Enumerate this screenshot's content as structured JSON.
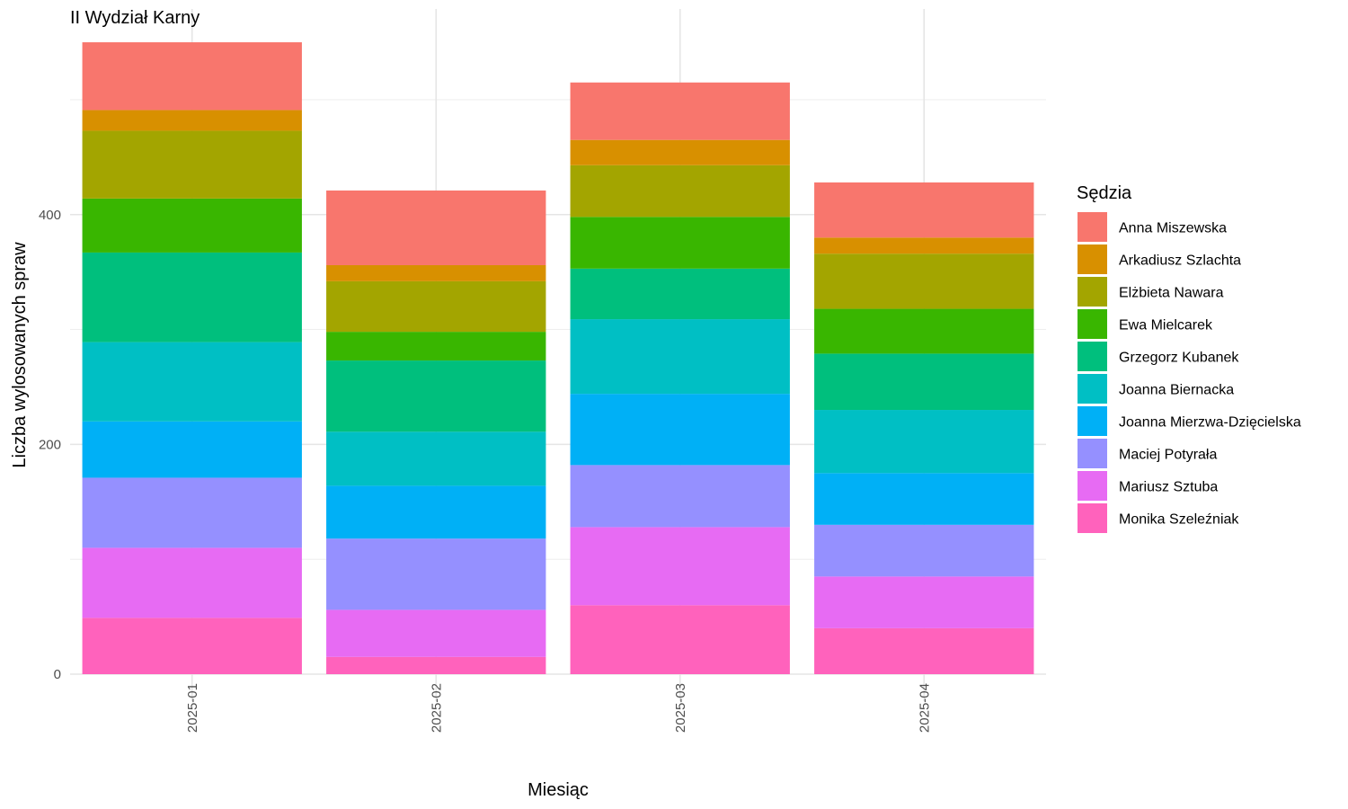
{
  "chart_data": {
    "type": "bar",
    "stacked": true,
    "title": "II Wydział Karny",
    "xlabel": "Miesiąc",
    "ylabel": "Liczba wylosowanych spraw",
    "categories": [
      "2025-01",
      "2025-02",
      "2025-03",
      "2025-04"
    ],
    "ylim": [
      0,
      580
    ],
    "yticks": [
      0,
      200,
      400
    ],
    "grid": true,
    "legend_title": "Sędzia",
    "legend_position": "right",
    "series": [
      {
        "name": "Anna Miszewska",
        "color": "#F8766D",
        "values": [
          59,
          65,
          50,
          48
        ]
      },
      {
        "name": "Arkadiusz Szlachta",
        "color": "#D89000",
        "values": [
          18,
          14,
          22,
          14
        ]
      },
      {
        "name": "Elżbieta Nawara",
        "color": "#A3A500",
        "values": [
          59,
          44,
          45,
          48
        ]
      },
      {
        "name": "Ewa Mielcarek",
        "color": "#39B600",
        "values": [
          47,
          25,
          45,
          39
        ]
      },
      {
        "name": "Grzegorz Kubanek",
        "color": "#00BF7D",
        "values": [
          78,
          62,
          44,
          49
        ]
      },
      {
        "name": "Joanna Biernacka",
        "color": "#00BFC4",
        "values": [
          69,
          47,
          65,
          55
        ]
      },
      {
        "name": "Joanna Mierzwa-Dzięcielska",
        "color": "#00B0F6",
        "values": [
          49,
          46,
          62,
          45
        ]
      },
      {
        "name": "Maciej Potyrała",
        "color": "#9590FF",
        "values": [
          61,
          62,
          54,
          45
        ]
      },
      {
        "name": "Mariusz Sztuba",
        "color": "#E76BF3",
        "values": [
          61,
          41,
          68,
          45
        ]
      },
      {
        "name": "Monika Szeleźniak",
        "color": "#FF62BC",
        "values": [
          49,
          15,
          60,
          40
        ]
      }
    ]
  }
}
